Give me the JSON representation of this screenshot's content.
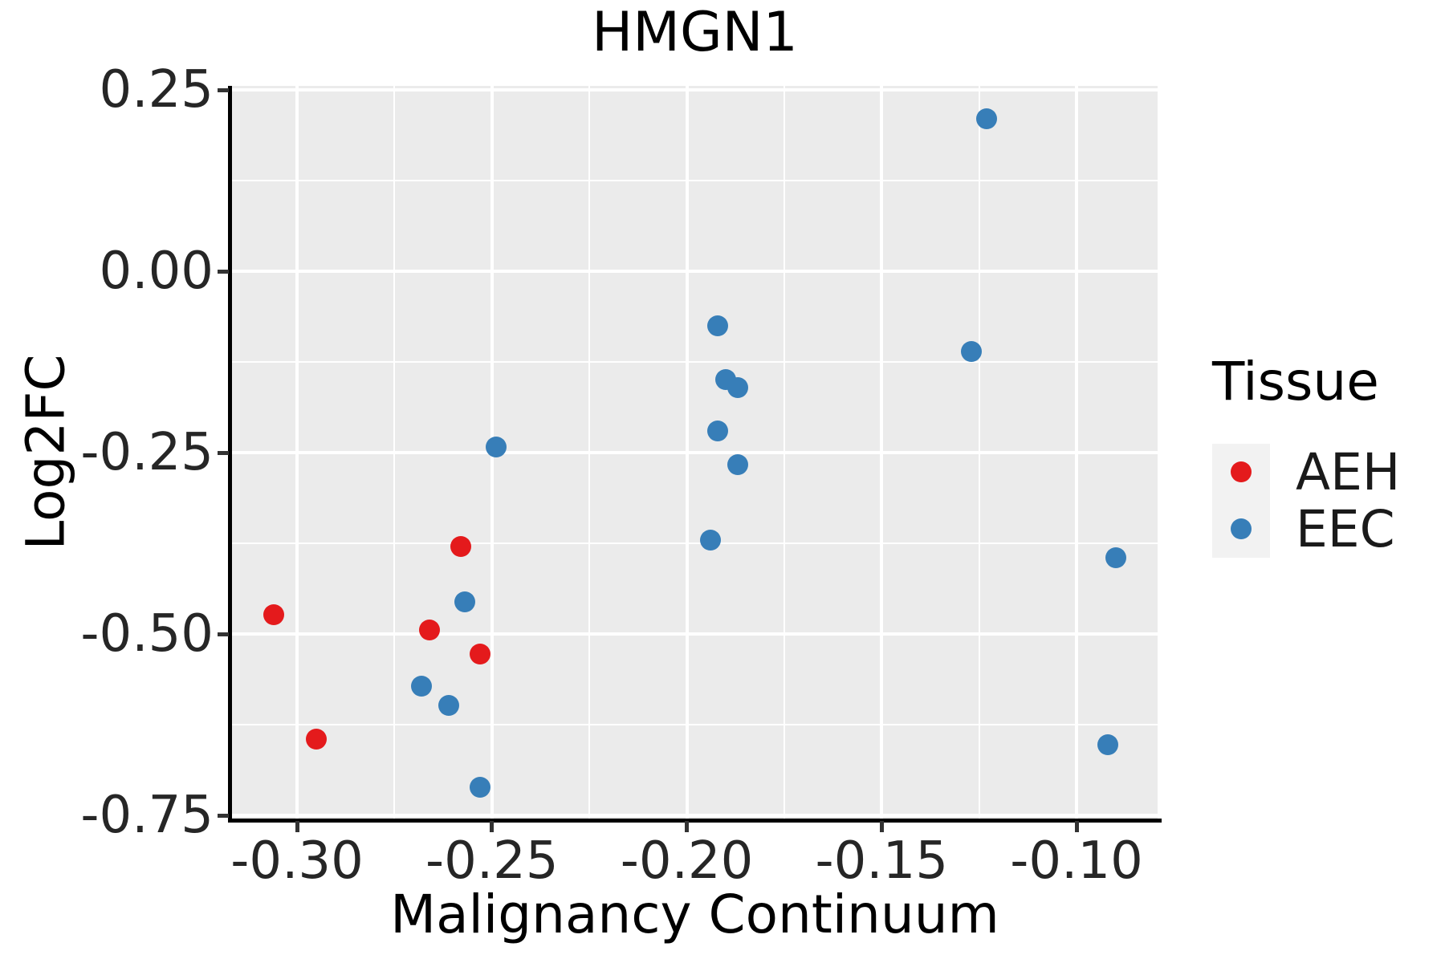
{
  "figure": {
    "title": "HMGN1",
    "x_axis_label": "Malignancy Continuum",
    "y_axis_label": "Log2FC"
  },
  "legend": {
    "title": "Tissue",
    "entries": [
      {
        "label": "AEH",
        "color": "#E41A1C"
      },
      {
        "label": "EEC",
        "color": "#377EB8"
      }
    ]
  },
  "colors": {
    "plot_background": "#EBEBEB",
    "grid_major": "#FFFFFF",
    "grid_minor": "#FFFFFF",
    "spine": "#000000",
    "tick_mark": "#333333",
    "legend_key_background": "#F2F2F2",
    "aeh_red": "#E41A1C",
    "eec_blue": "#377EB8"
  },
  "chart_data": {
    "type": "scatter",
    "title": "HMGN1",
    "xlabel": "Malignancy Continuum",
    "ylabel": "Log2FC",
    "xlim": [
      -0.3167,
      -0.0792
    ],
    "ylim": [
      -0.7544,
      0.2556
    ],
    "x_ticks": [
      -0.3,
      -0.25,
      -0.2,
      -0.15,
      -0.1
    ],
    "x_tick_labels": [
      "-0.30",
      "-0.25",
      "-0.20",
      "-0.15",
      "-0.10"
    ],
    "x_minor_ticks": [
      -0.275,
      -0.225,
      -0.175,
      -0.125
    ],
    "y_ticks": [
      0.25,
      0.0,
      -0.25,
      -0.5,
      -0.75
    ],
    "y_tick_labels": [
      "0.25",
      "0.00",
      "-0.25",
      "-0.50",
      "-0.75"
    ],
    "y_minor_ticks": [
      0.125,
      -0.125,
      -0.375,
      -0.625
    ],
    "grid": true,
    "legend_position": "right",
    "series": [
      {
        "name": "AEH",
        "color": "#E41A1C",
        "points": [
          [
            -0.306,
            -0.473
          ],
          [
            -0.295,
            -0.645
          ],
          [
            -0.266,
            -0.494
          ],
          [
            -0.258,
            -0.379
          ],
          [
            -0.253,
            -0.528
          ]
        ]
      },
      {
        "name": "EEC",
        "color": "#377EB8",
        "points": [
          [
            -0.268,
            -0.572
          ],
          [
            -0.261,
            -0.598
          ],
          [
            -0.257,
            -0.456
          ],
          [
            -0.253,
            -0.711
          ],
          [
            -0.249,
            -0.242
          ],
          [
            -0.194,
            -0.37
          ],
          [
            -0.192,
            -0.075
          ],
          [
            -0.192,
            -0.22
          ],
          [
            -0.19,
            -0.149
          ],
          [
            -0.187,
            -0.16
          ],
          [
            -0.187,
            -0.267
          ],
          [
            -0.127,
            -0.111
          ],
          [
            -0.123,
            0.21
          ],
          [
            -0.092,
            -0.653
          ],
          [
            -0.09,
            -0.395
          ]
        ]
      }
    ]
  }
}
